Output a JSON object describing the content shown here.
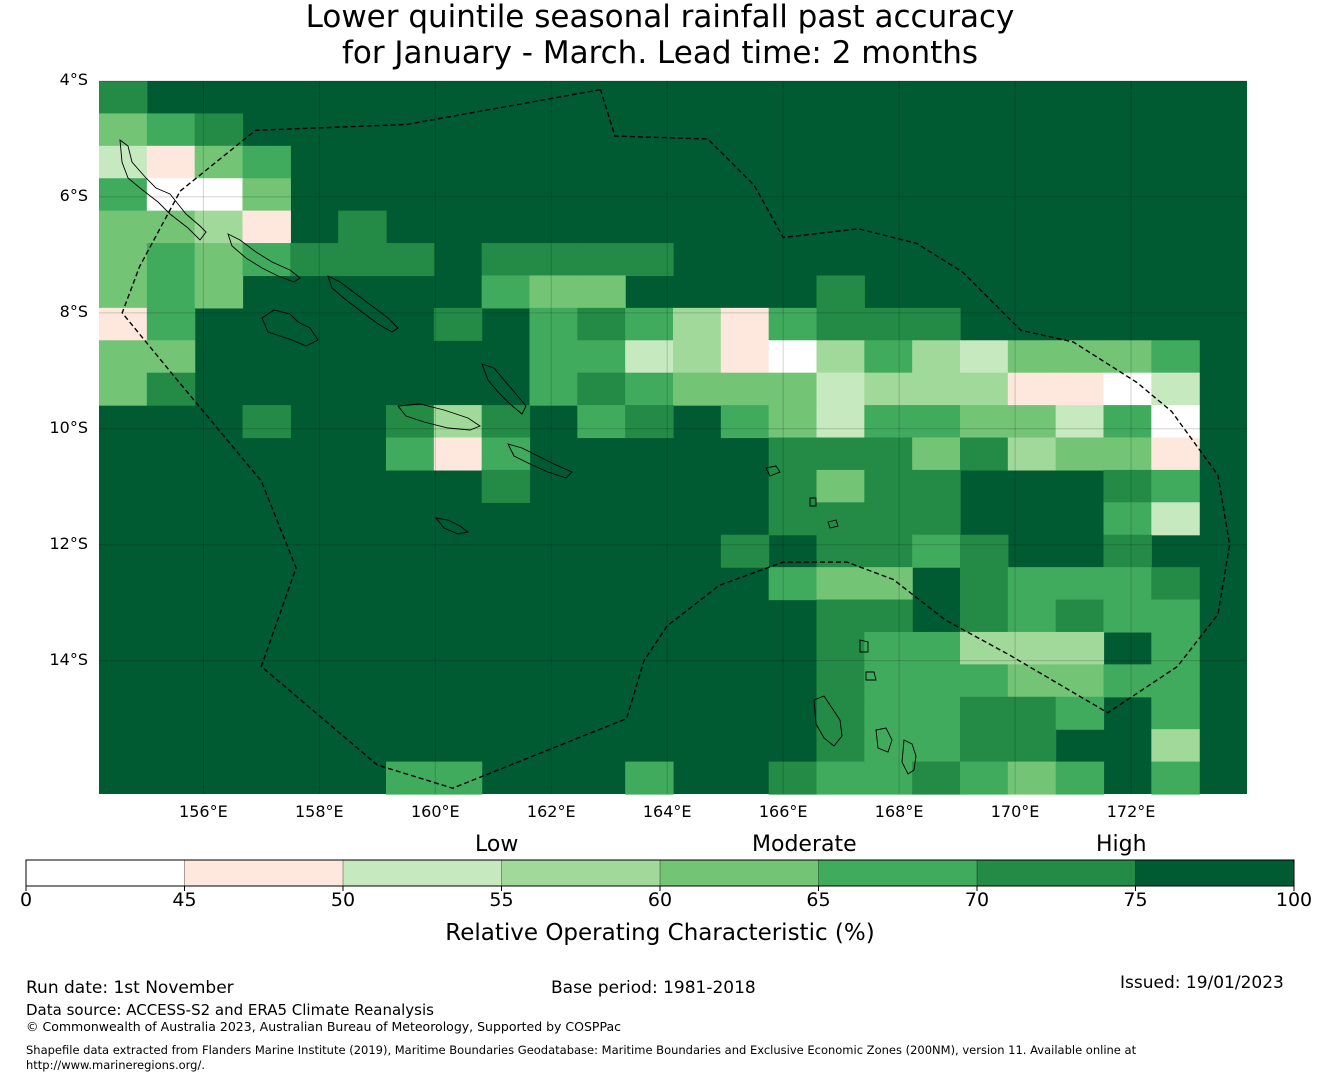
{
  "title": {
    "line1": "Lower quintile seasonal rainfall past accuracy",
    "line2": "for January - March. Lead time: 2 months"
  },
  "map": {
    "lon_min": 154.2,
    "lon_max": 174.0,
    "lat_min": -16.3,
    "lat_max": -4.0,
    "lat_ticks": [
      {
        "label": "4°S",
        "value": -4
      },
      {
        "label": "6°S",
        "value": -6
      },
      {
        "label": "8°S",
        "value": -8
      },
      {
        "label": "10°S",
        "value": -10
      },
      {
        "label": "12°S",
        "value": -12
      },
      {
        "label": "14°S",
        "value": -14
      }
    ],
    "lon_ticks": [
      {
        "label": "156°E",
        "value": 156
      },
      {
        "label": "158°E",
        "value": 158
      },
      {
        "label": "160°E",
        "value": 160
      },
      {
        "label": "162°E",
        "value": 162
      },
      {
        "label": "164°E",
        "value": 164
      },
      {
        "label": "166°E",
        "value": 166
      },
      {
        "label": "168°E",
        "value": 168
      },
      {
        "label": "170°E",
        "value": 170
      },
      {
        "label": "172°E",
        "value": 172
      }
    ],
    "grid_resolution_deg": 0.82,
    "default_class": 7,
    "cells_note": "class index per cell (0:<45, 1:45-50, 2:50-55, 3:55-60, 4:60-65, 5:65-70, 6:70-75, 7:75-100)",
    "cells": [
      [
        0,
        0,
        6
      ],
      [
        1,
        0,
        4
      ],
      [
        1,
        1,
        5
      ],
      [
        1,
        2,
        6
      ],
      [
        2,
        0,
        2
      ],
      [
        2,
        1,
        1
      ],
      [
        2,
        2,
        4
      ],
      [
        2,
        3,
        5
      ],
      [
        3,
        0,
        5
      ],
      [
        3,
        1,
        0
      ],
      [
        3,
        2,
        0
      ],
      [
        3,
        3,
        4
      ],
      [
        4,
        0,
        4
      ],
      [
        4,
        1,
        4
      ],
      [
        4,
        2,
        3
      ],
      [
        4,
        3,
        1
      ],
      [
        4,
        5,
        6
      ],
      [
        5,
        0,
        4
      ],
      [
        5,
        1,
        5
      ],
      [
        5,
        2,
        4
      ],
      [
        5,
        3,
        5
      ],
      [
        5,
        4,
        6
      ],
      [
        5,
        5,
        6
      ],
      [
        5,
        6,
        6
      ],
      [
        5,
        8,
        6
      ],
      [
        5,
        9,
        6
      ],
      [
        5,
        10,
        6
      ],
      [
        5,
        11,
        6
      ],
      [
        6,
        0,
        4
      ],
      [
        6,
        1,
        5
      ],
      [
        6,
        2,
        4
      ],
      [
        6,
        8,
        5
      ],
      [
        6,
        9,
        4
      ],
      [
        6,
        10,
        4
      ],
      [
        6,
        15,
        6
      ],
      [
        7,
        0,
        1
      ],
      [
        7,
        1,
        5
      ],
      [
        7,
        7,
        6
      ],
      [
        7,
        9,
        5
      ],
      [
        7,
        10,
        6
      ],
      [
        7,
        11,
        5
      ],
      [
        7,
        12,
        3
      ],
      [
        7,
        13,
        1
      ],
      [
        7,
        14,
        5
      ],
      [
        7,
        15,
        6
      ],
      [
        7,
        16,
        6
      ],
      [
        7,
        17,
        6
      ],
      [
        8,
        0,
        4
      ],
      [
        8,
        1,
        4
      ],
      [
        8,
        9,
        5
      ],
      [
        8,
        10,
        5
      ],
      [
        8,
        11,
        2
      ],
      [
        8,
        12,
        3
      ],
      [
        8,
        13,
        1
      ],
      [
        8,
        14,
        0
      ],
      [
        8,
        15,
        3
      ],
      [
        8,
        16,
        5
      ],
      [
        8,
        17,
        3
      ],
      [
        8,
        18,
        2
      ],
      [
        8,
        19,
        4
      ],
      [
        8,
        20,
        4
      ],
      [
        8,
        21,
        4
      ],
      [
        8,
        22,
        5
      ],
      [
        9,
        0,
        4
      ],
      [
        9,
        1,
        6
      ],
      [
        9,
        9,
        5
      ],
      [
        9,
        10,
        6
      ],
      [
        9,
        11,
        5
      ],
      [
        9,
        12,
        4
      ],
      [
        9,
        13,
        4
      ],
      [
        9,
        14,
        4
      ],
      [
        9,
        15,
        2
      ],
      [
        9,
        16,
        3
      ],
      [
        9,
        17,
        3
      ],
      [
        9,
        18,
        3
      ],
      [
        9,
        19,
        1
      ],
      [
        9,
        20,
        1
      ],
      [
        9,
        21,
        0
      ],
      [
        9,
        22,
        2
      ],
      [
        10,
        3,
        6
      ],
      [
        10,
        6,
        6
      ],
      [
        10,
        7,
        3
      ],
      [
        10,
        8,
        6
      ],
      [
        10,
        10,
        5
      ],
      [
        10,
        11,
        6
      ],
      [
        10,
        13,
        5
      ],
      [
        10,
        14,
        4
      ],
      [
        10,
        15,
        2
      ],
      [
        10,
        16,
        5
      ],
      [
        10,
        17,
        5
      ],
      [
        10,
        18,
        4
      ],
      [
        10,
        19,
        4
      ],
      [
        10,
        20,
        2
      ],
      [
        10,
        21,
        5
      ],
      [
        10,
        22,
        0
      ],
      [
        11,
        6,
        5
      ],
      [
        11,
        7,
        1
      ],
      [
        11,
        8,
        5
      ],
      [
        11,
        14,
        6
      ],
      [
        11,
        15,
        6
      ],
      [
        11,
        16,
        6
      ],
      [
        11,
        17,
        4
      ],
      [
        11,
        18,
        6
      ],
      [
        11,
        19,
        3
      ],
      [
        11,
        20,
        4
      ],
      [
        11,
        21,
        4
      ],
      [
        11,
        22,
        1
      ],
      [
        12,
        8,
        6
      ],
      [
        12,
        14,
        6
      ],
      [
        12,
        15,
        4
      ],
      [
        12,
        16,
        6
      ],
      [
        12,
        17,
        6
      ],
      [
        12,
        21,
        6
      ],
      [
        12,
        22,
        5
      ],
      [
        13,
        14,
        6
      ],
      [
        13,
        15,
        6
      ],
      [
        13,
        16,
        6
      ],
      [
        13,
        17,
        6
      ],
      [
        13,
        21,
        5
      ],
      [
        13,
        22,
        2
      ],
      [
        14,
        13,
        6
      ],
      [
        14,
        15,
        6
      ],
      [
        14,
        16,
        6
      ],
      [
        14,
        17,
        5
      ],
      [
        14,
        18,
        6
      ],
      [
        14,
        21,
        6
      ],
      [
        15,
        14,
        5
      ],
      [
        15,
        15,
        4
      ],
      [
        15,
        16,
        4
      ],
      [
        15,
        18,
        6
      ],
      [
        15,
        19,
        5
      ],
      [
        15,
        20,
        5
      ],
      [
        15,
        21,
        5
      ],
      [
        15,
        22,
        6
      ],
      [
        16,
        15,
        6
      ],
      [
        16,
        16,
        6
      ],
      [
        16,
        18,
        6
      ],
      [
        16,
        19,
        5
      ],
      [
        16,
        20,
        6
      ],
      [
        16,
        21,
        5
      ],
      [
        16,
        22,
        5
      ],
      [
        17,
        15,
        6
      ],
      [
        17,
        16,
        5
      ],
      [
        17,
        17,
        5
      ],
      [
        17,
        18,
        3
      ],
      [
        17,
        19,
        3
      ],
      [
        17,
        20,
        3
      ],
      [
        17,
        22,
        5
      ],
      [
        18,
        15,
        6
      ],
      [
        18,
        16,
        5
      ],
      [
        18,
        17,
        5
      ],
      [
        18,
        18,
        5
      ],
      [
        18,
        19,
        4
      ],
      [
        18,
        20,
        4
      ],
      [
        18,
        21,
        5
      ],
      [
        18,
        22,
        5
      ],
      [
        19,
        15,
        6
      ],
      [
        19,
        16,
        5
      ],
      [
        19,
        17,
        5
      ],
      [
        19,
        18,
        6
      ],
      [
        19,
        19,
        6
      ],
      [
        19,
        20,
        5
      ],
      [
        19,
        22,
        5
      ],
      [
        20,
        15,
        6
      ],
      [
        20,
        16,
        5
      ],
      [
        20,
        17,
        5
      ],
      [
        20,
        18,
        6
      ],
      [
        20,
        19,
        6
      ],
      [
        20,
        22,
        3
      ],
      [
        21,
        6,
        5
      ],
      [
        21,
        7,
        5
      ],
      [
        21,
        11,
        5
      ],
      [
        21,
        14,
        6
      ],
      [
        21,
        15,
        5
      ],
      [
        21,
        16,
        5
      ],
      [
        21,
        17,
        6
      ],
      [
        21,
        18,
        5
      ],
      [
        21,
        19,
        4
      ],
      [
        21,
        20,
        5
      ],
      [
        21,
        22,
        5
      ]
    ],
    "eez_boundary": [
      [
        162.85,
        -4.15
      ],
      [
        159.5,
        -4.75
      ],
      [
        156.9,
        -4.85
      ],
      [
        155.6,
        -5.9
      ],
      [
        154.9,
        -7.2
      ],
      [
        154.6,
        -8.0
      ],
      [
        155.5,
        -9.1
      ],
      [
        157.0,
        -10.9
      ],
      [
        157.6,
        -12.4
      ],
      [
        157.0,
        -14.1
      ],
      [
        159.0,
        -15.8
      ],
      [
        160.3,
        -16.2
      ],
      [
        163.3,
        -15.0
      ],
      [
        163.6,
        -14.0
      ],
      [
        164.0,
        -13.4
      ],
      [
        164.9,
        -12.7
      ],
      [
        166.0,
        -12.3
      ],
      [
        167.1,
        -12.3
      ],
      [
        167.9,
        -12.6
      ],
      [
        168.8,
        -13.3
      ],
      [
        169.9,
        -13.9
      ],
      [
        171.6,
        -14.9
      ],
      [
        172.8,
        -14.1
      ],
      [
        173.5,
        -13.2
      ],
      [
        173.7,
        -12.0
      ],
      [
        173.5,
        -10.8
      ],
      [
        172.7,
        -9.7
      ],
      [
        172.1,
        -9.2
      ],
      [
        171.0,
        -8.5
      ],
      [
        170.1,
        -8.3
      ],
      [
        169.1,
        -7.3
      ],
      [
        168.3,
        -6.8
      ],
      [
        167.3,
        -6.55
      ],
      [
        166.0,
        -6.7
      ],
      [
        165.5,
        -5.8
      ],
      [
        164.7,
        -5.0
      ],
      [
        163.1,
        -4.95
      ],
      [
        162.85,
        -4.15
      ]
    ]
  },
  "colorbar": {
    "category_labels": {
      "low": "Low",
      "moderate": "Moderate",
      "high": "High"
    },
    "colors": [
      "#ffffff",
      "#fee8de",
      "#c7e9c0",
      "#a1d99b",
      "#74c476",
      "#41ab5d",
      "#238b45",
      "#005a32"
    ],
    "ticks": [
      "0",
      "45",
      "50",
      "55",
      "60",
      "65",
      "70",
      "75",
      "100"
    ],
    "title": "Relative Operating Characteristic (%)"
  },
  "footer": {
    "run_date": "Run date: 1st November",
    "base_period": "Base period: 1981-2018",
    "issued": "Issued: 19/01/2023",
    "data_source": "Data source: ACCESS-S2 and ERA5 Climate Reanalysis",
    "copyright": "© Commonwealth of Australia 2023, Australian Bureau of Meteorology, Supported by COSPPac",
    "shapefile_line1": "Shapefile data extracted from Flanders Marine Institute (2019), Maritime Boundaries Geodatabase: Maritime Boundaries and Exclusive Economic Zones (200NM), version 11. Available online at",
    "shapefile_line2": "http://www.marineregions.org/."
  }
}
